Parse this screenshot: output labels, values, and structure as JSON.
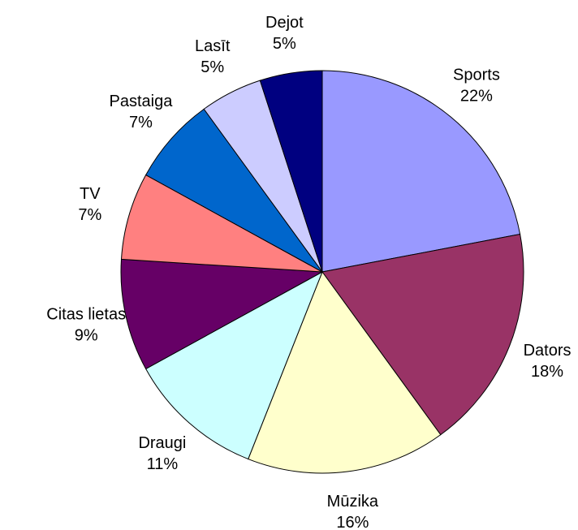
{
  "chart_data": {
    "type": "pie",
    "categories": [
      "Sports",
      "Dators",
      "Mūzika",
      "Draugi",
      "Citas lietas",
      "TV",
      "Pastaiga",
      "Lasīt",
      "Dejot"
    ],
    "values": [
      22,
      18,
      16,
      11,
      9,
      7,
      7,
      5,
      5
    ],
    "value_labels": [
      "22%",
      "18%",
      "16%",
      "11%",
      "9%",
      "7%",
      "7%",
      "5%",
      "5%"
    ],
    "colors": [
      "#9999ff",
      "#993366",
      "#ffffcc",
      "#ccffff",
      "#660066",
      "#ff8080",
      "#0066cc",
      "#ccccff",
      "#000080"
    ]
  }
}
